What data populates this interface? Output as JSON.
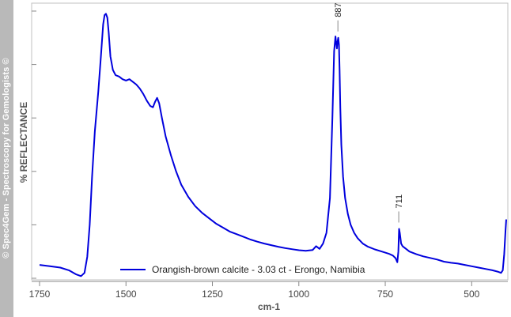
{
  "watermark": "© Spec4Gem - Spectroscopy for Gemologists ©",
  "colors": {
    "line": "#0000dd",
    "frame": "#c0c0c0",
    "sidebar": "#b9b9b9"
  },
  "chart_data": {
    "type": "line",
    "xlabel": "cm-1",
    "ylabel": "% REFLECTANCE",
    "xlim": [
      1750,
      400
    ],
    "ylim": [
      0,
      1
    ],
    "x_reversed": true,
    "x_ticks": [
      1750,
      1500,
      1250,
      1000,
      750,
      500
    ],
    "grid": false,
    "legend_position": "bottom-center",
    "series": [
      {
        "name": "Orangish-brown calcite - 3.03 ct - Erongo, Namibia",
        "x": [
          1750,
          1720,
          1690,
          1665,
          1645,
          1630,
          1620,
          1612,
          1605,
          1598,
          1590,
          1580,
          1572,
          1566,
          1562,
          1558,
          1554,
          1550,
          1545,
          1538,
          1530,
          1520,
          1510,
          1500,
          1490,
          1480,
          1470,
          1460,
          1450,
          1440,
          1430,
          1422,
          1416,
          1410,
          1404,
          1396,
          1385,
          1370,
          1355,
          1340,
          1320,
          1300,
          1280,
          1260,
          1240,
          1220,
          1200,
          1180,
          1160,
          1140,
          1120,
          1100,
          1080,
          1060,
          1040,
          1020,
          1000,
          980,
          960,
          950,
          940,
          930,
          920,
          910,
          903,
          898,
          894,
          892,
          890,
          888,
          886,
          884,
          882,
          880,
          877,
          872,
          866,
          858,
          850,
          840,
          830,
          815,
          800,
          780,
          760,
          740,
          728,
          720,
          715,
          712,
          710,
          708,
          704,
          700,
          690,
          680,
          660,
          640,
          620,
          600,
          580,
          560,
          540,
          520,
          500,
          480,
          460,
          440,
          425,
          415,
          410,
          406,
          402,
          400
        ],
        "values": [
          0.05,
          0.045,
          0.04,
          0.03,
          0.015,
          0.008,
          0.02,
          0.08,
          0.2,
          0.38,
          0.55,
          0.7,
          0.84,
          0.95,
          0.985,
          0.99,
          0.975,
          0.92,
          0.83,
          0.78,
          0.76,
          0.755,
          0.745,
          0.74,
          0.745,
          0.735,
          0.725,
          0.71,
          0.69,
          0.665,
          0.645,
          0.64,
          0.66,
          0.675,
          0.655,
          0.6,
          0.53,
          0.46,
          0.4,
          0.35,
          0.305,
          0.27,
          0.245,
          0.225,
          0.205,
          0.19,
          0.175,
          0.165,
          0.155,
          0.145,
          0.137,
          0.13,
          0.124,
          0.118,
          0.113,
          0.109,
          0.105,
          0.103,
          0.106,
          0.12,
          0.11,
          0.13,
          0.17,
          0.3,
          0.6,
          0.85,
          0.905,
          0.88,
          0.86,
          0.885,
          0.9,
          0.875,
          0.78,
          0.64,
          0.5,
          0.38,
          0.3,
          0.24,
          0.2,
          0.17,
          0.15,
          0.13,
          0.118,
          0.108,
          0.1,
          0.092,
          0.085,
          0.075,
          0.06,
          0.1,
          0.185,
          0.17,
          0.13,
          0.12,
          0.11,
          0.1,
          0.09,
          0.082,
          0.076,
          0.07,
          0.062,
          0.058,
          0.055,
          0.05,
          0.045,
          0.04,
          0.035,
          0.03,
          0.025,
          0.02,
          0.03,
          0.09,
          0.18,
          0.22
        ]
      }
    ],
    "annotations": [
      {
        "x": 887,
        "label": "887"
      },
      {
        "x": 711,
        "label": "711"
      }
    ]
  }
}
